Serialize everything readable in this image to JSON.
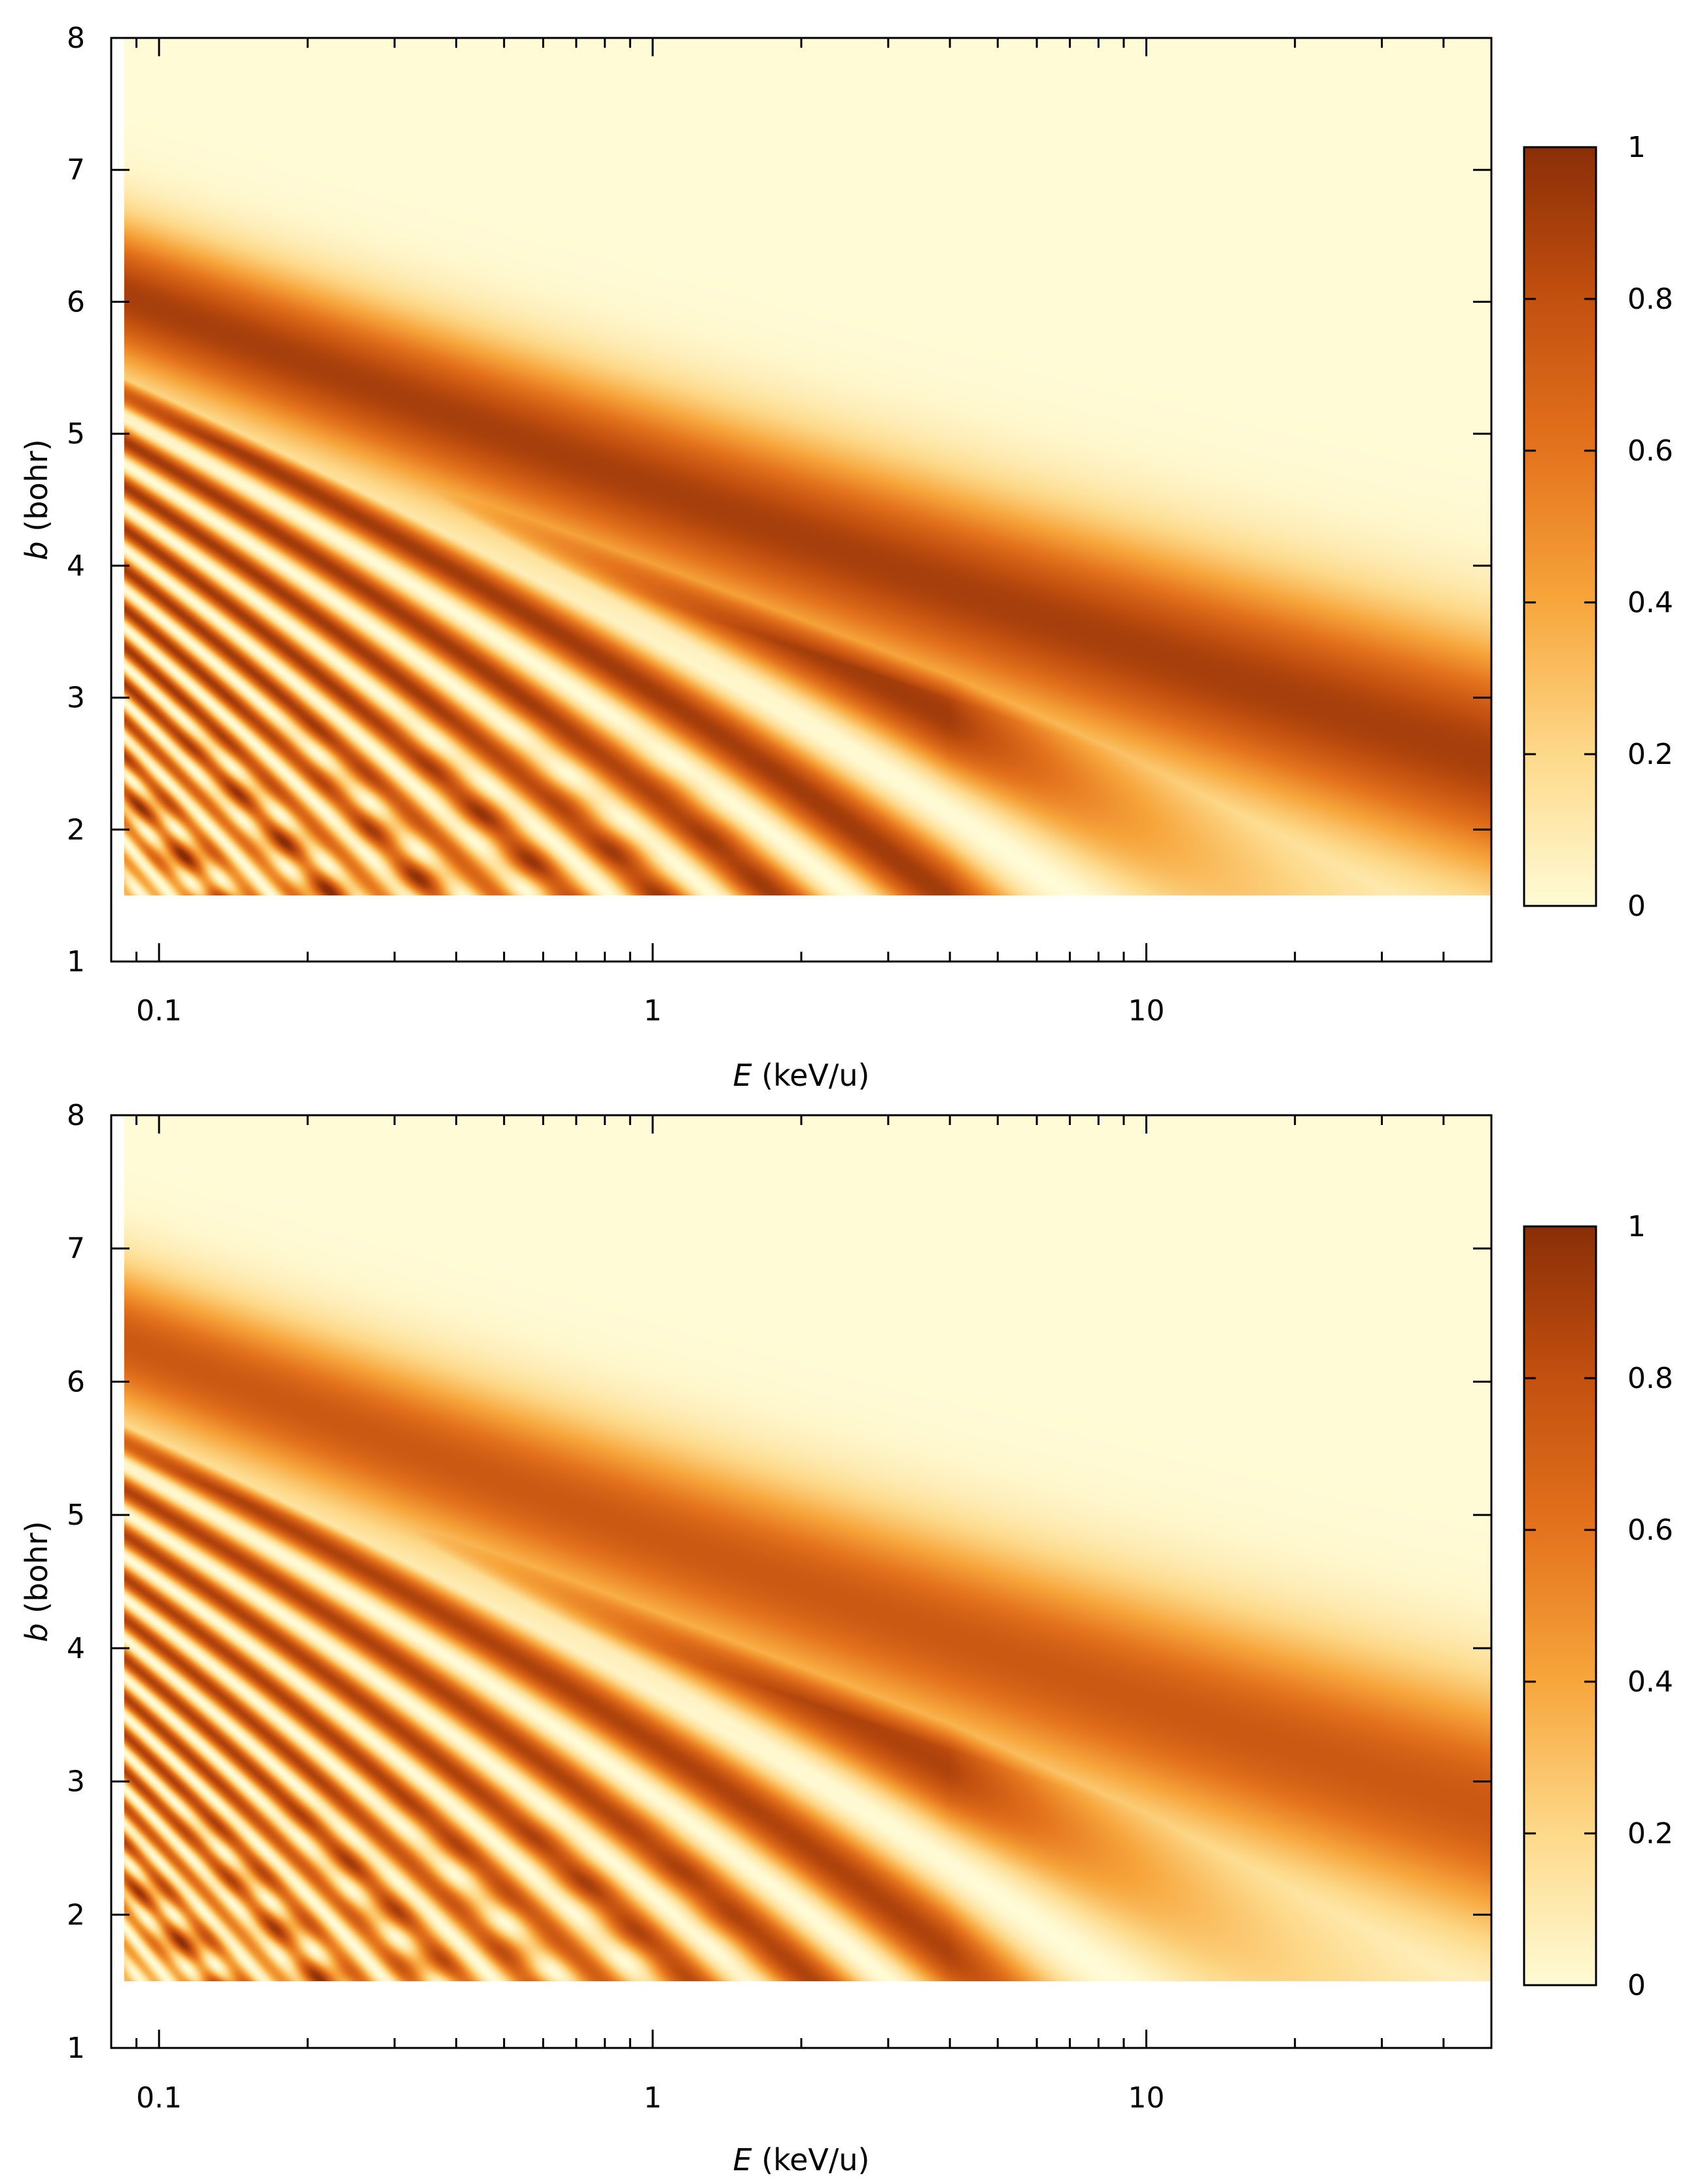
{
  "chart_data": [
    {
      "type": "heatmap",
      "title": "",
      "xlabel_italic": "E",
      "xlabel_unit": " (keV/u)",
      "ylabel_italic": "b",
      "ylabel_unit": " (bohr)",
      "x_scale": "log",
      "xlim": [
        0.08,
        50
      ],
      "ylim": [
        1,
        8
      ],
      "x_ticks": [
        0.1,
        1,
        10
      ],
      "x_tick_labels": [
        "0.1",
        "1",
        "10"
      ],
      "y_ticks": [
        1,
        2,
        3,
        4,
        5,
        6,
        7,
        8
      ],
      "y_tick_labels": [
        "1",
        "2",
        "3",
        "4",
        "5",
        "6",
        "7",
        "8"
      ],
      "data_region": {
        "x": [
          0.085,
          50
        ],
        "b": [
          1.5,
          8
        ]
      },
      "colorbar": {
        "range": [
          0,
          1
        ],
        "ticks": [
          0,
          0.2,
          0.4,
          0.6,
          0.8,
          1
        ],
        "tick_labels": [
          "0",
          "0.2",
          "0.4",
          "0.6",
          "0.8",
          "1"
        ],
        "colors": [
          "#fffbd6",
          "#fdd98a",
          "#f7a63c",
          "#e4731d",
          "#c3500f",
          "#8a2e08"
        ]
      },
      "ridges": [
        {
          "b_at_0.1keV": 5.95,
          "b_at_1keV": 4.6,
          "b_at_10keV": 3.2,
          "b_at_50keV": 2.1,
          "peak": 0.9
        },
        {
          "b_at_0.1keV": 4.5,
          "b_at_1keV": 3.05,
          "b_at_10keV": 1.55,
          "peak": 0.95
        },
        {
          "b_at_0.1keV": 3.9,
          "b_at_1keV": 2.55,
          "peak": 0.9
        },
        {
          "b_at_0.1keV": 3.4,
          "b_at_1keV": 2.15,
          "peak": 0.9
        }
      ]
    },
    {
      "type": "heatmap",
      "title": "",
      "xlabel_italic": "E",
      "xlabel_unit": " (keV/u)",
      "ylabel_italic": "b",
      "ylabel_unit": " (bohr)",
      "x_scale": "log",
      "xlim": [
        0.08,
        50
      ],
      "ylim": [
        1,
        8
      ],
      "x_ticks": [
        0.1,
        1,
        10
      ],
      "x_tick_labels": [
        "0.1",
        "1",
        "10"
      ],
      "y_ticks": [
        1,
        2,
        3,
        4,
        5,
        6,
        7,
        8
      ],
      "y_tick_labels": [
        "1",
        "2",
        "3",
        "4",
        "5",
        "6",
        "7",
        "8"
      ],
      "data_region": {
        "x": [
          0.085,
          50
        ],
        "b": [
          1.5,
          8
        ]
      },
      "colorbar": {
        "range": [
          0,
          1
        ],
        "ticks": [
          0,
          0.2,
          0.4,
          0.6,
          0.8,
          1
        ],
        "tick_labels": [
          "0",
          "0.2",
          "0.4",
          "0.6",
          "0.8",
          "1"
        ],
        "colors": [
          "#fffbd6",
          "#fdd98a",
          "#f7a63c",
          "#e4731d",
          "#c3500f",
          "#8a2e08"
        ]
      },
      "ridges": [
        {
          "b_at_0.1keV": 6.2,
          "b_at_1keV": 4.4,
          "b_at_10keV": 3.0,
          "b_at_50keV": 2.1,
          "peak": 0.75
        },
        {
          "b_at_0.1keV": 4.55,
          "b_at_1keV": 3.0,
          "b_at_10keV": 1.55,
          "peak": 0.95
        },
        {
          "b_at_0.1keV": 3.95,
          "b_at_1keV": 2.55,
          "peak": 0.9
        },
        {
          "b_at_0.1keV": 3.45,
          "b_at_1keV": 2.15,
          "peak": 0.9
        }
      ]
    }
  ]
}
